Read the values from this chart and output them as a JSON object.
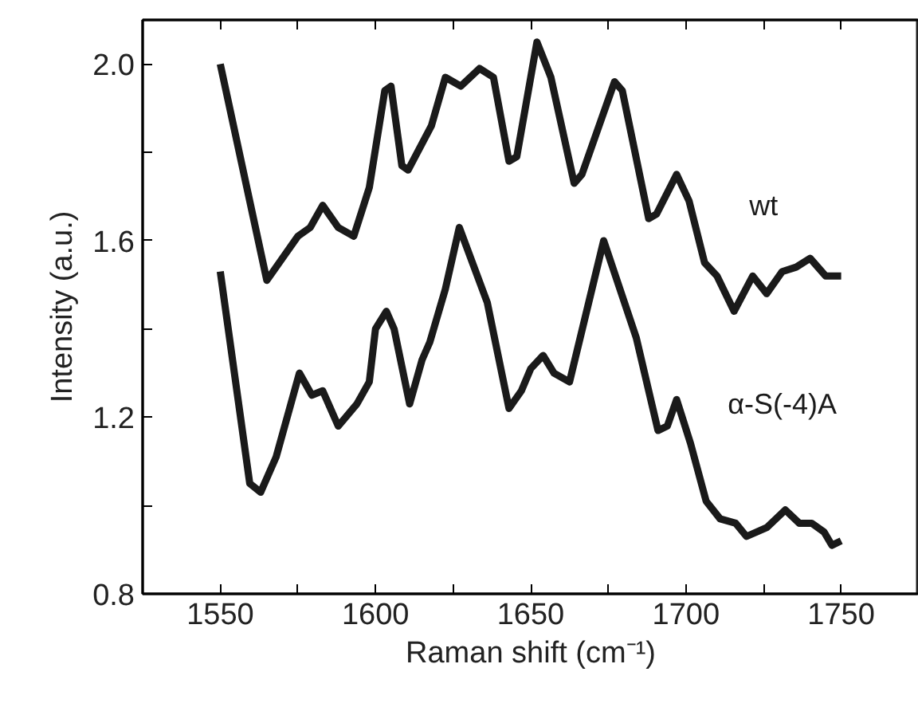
{
  "chart_data": {
    "type": "line",
    "xlabel": "Raman shift (cm⁻¹)",
    "ylabel": "Intensity (a.u.)",
    "xlim": [
      1525,
      1775
    ],
    "ylim": [
      0.8,
      2.1
    ],
    "xticks": [
      {
        "value": 1525,
        "label": null
      },
      1550,
      {
        "value": 1575,
        "label": null
      },
      1600,
      {
        "value": 1625,
        "label": null
      },
      1650,
      {
        "value": 1675,
        "label": null
      },
      1700,
      {
        "value": 1725,
        "label": null
      },
      1750
    ],
    "yticks": [
      0.8,
      {
        "value": 1.0,
        "label": null
      },
      1.2,
      {
        "value": 1.4,
        "label": null
      },
      1.6,
      {
        "value": 1.8,
        "label": null
      },
      {
        "value": 2.0,
        "label": "2.0"
      }
    ],
    "grid": false,
    "marker": "none",
    "line_style": "solid",
    "series": [
      {
        "name": "wt",
        "color": "#1a1a1a",
        "x": [
          1550,
          1565,
          1575,
          1579,
          1583,
          1588,
          1593,
          1598,
          1603,
          1605,
          1608.5,
          1610.5,
          1618,
          1622.5,
          1627.5,
          1633.5,
          1638,
          1643,
          1645.5,
          1652,
          1656.5,
          1664,
          1666.5,
          1677,
          1679.5,
          1688,
          1690.5,
          1697,
          1701,
          1706,
          1710,
          1715.5,
          1721.5,
          1726,
          1731,
          1735.5,
          1740,
          1745,
          1750
        ],
        "values": [
          2.0,
          1.51,
          1.61,
          1.63,
          1.68,
          1.63,
          1.61,
          1.72,
          1.94,
          1.95,
          1.77,
          1.76,
          1.86,
          1.97,
          1.95,
          1.99,
          1.97,
          1.78,
          1.79,
          2.05,
          1.97,
          1.73,
          1.75,
          1.96,
          1.94,
          1.65,
          1.66,
          1.75,
          1.69,
          1.55,
          1.52,
          1.44,
          1.52,
          1.48,
          1.53,
          1.54,
          1.56,
          1.52,
          1.52
        ]
      },
      {
        "name": "α-S(-4)A",
        "color": "#1a1a1a",
        "x": [
          1550,
          1559.5,
          1563,
          1568,
          1575.5,
          1579.5,
          1583,
          1588,
          1594,
          1598,
          1600,
          1603.5,
          1606,
          1611,
          1615,
          1617.5,
          1622.5,
          1627,
          1636,
          1643,
          1647,
          1650,
          1654,
          1657.5,
          1662.5,
          1673.5,
          1684,
          1691,
          1694,
          1697,
          1701.5,
          1706.5,
          1711,
          1716,
          1719.5,
          1726,
          1732,
          1736.5,
          1740.5,
          1744.5,
          1747,
          1750
        ],
        "values": [
          1.53,
          1.05,
          1.03,
          1.11,
          1.3,
          1.25,
          1.26,
          1.18,
          1.23,
          1.28,
          1.4,
          1.44,
          1.4,
          1.23,
          1.33,
          1.37,
          1.49,
          1.63,
          1.46,
          1.22,
          1.26,
          1.31,
          1.34,
          1.3,
          1.28,
          1.6,
          1.38,
          1.17,
          1.18,
          1.24,
          1.14,
          1.01,
          0.97,
          0.96,
          0.93,
          0.95,
          0.99,
          0.96,
          0.96,
          0.94,
          0.91,
          0.92
        ]
      }
    ]
  }
}
